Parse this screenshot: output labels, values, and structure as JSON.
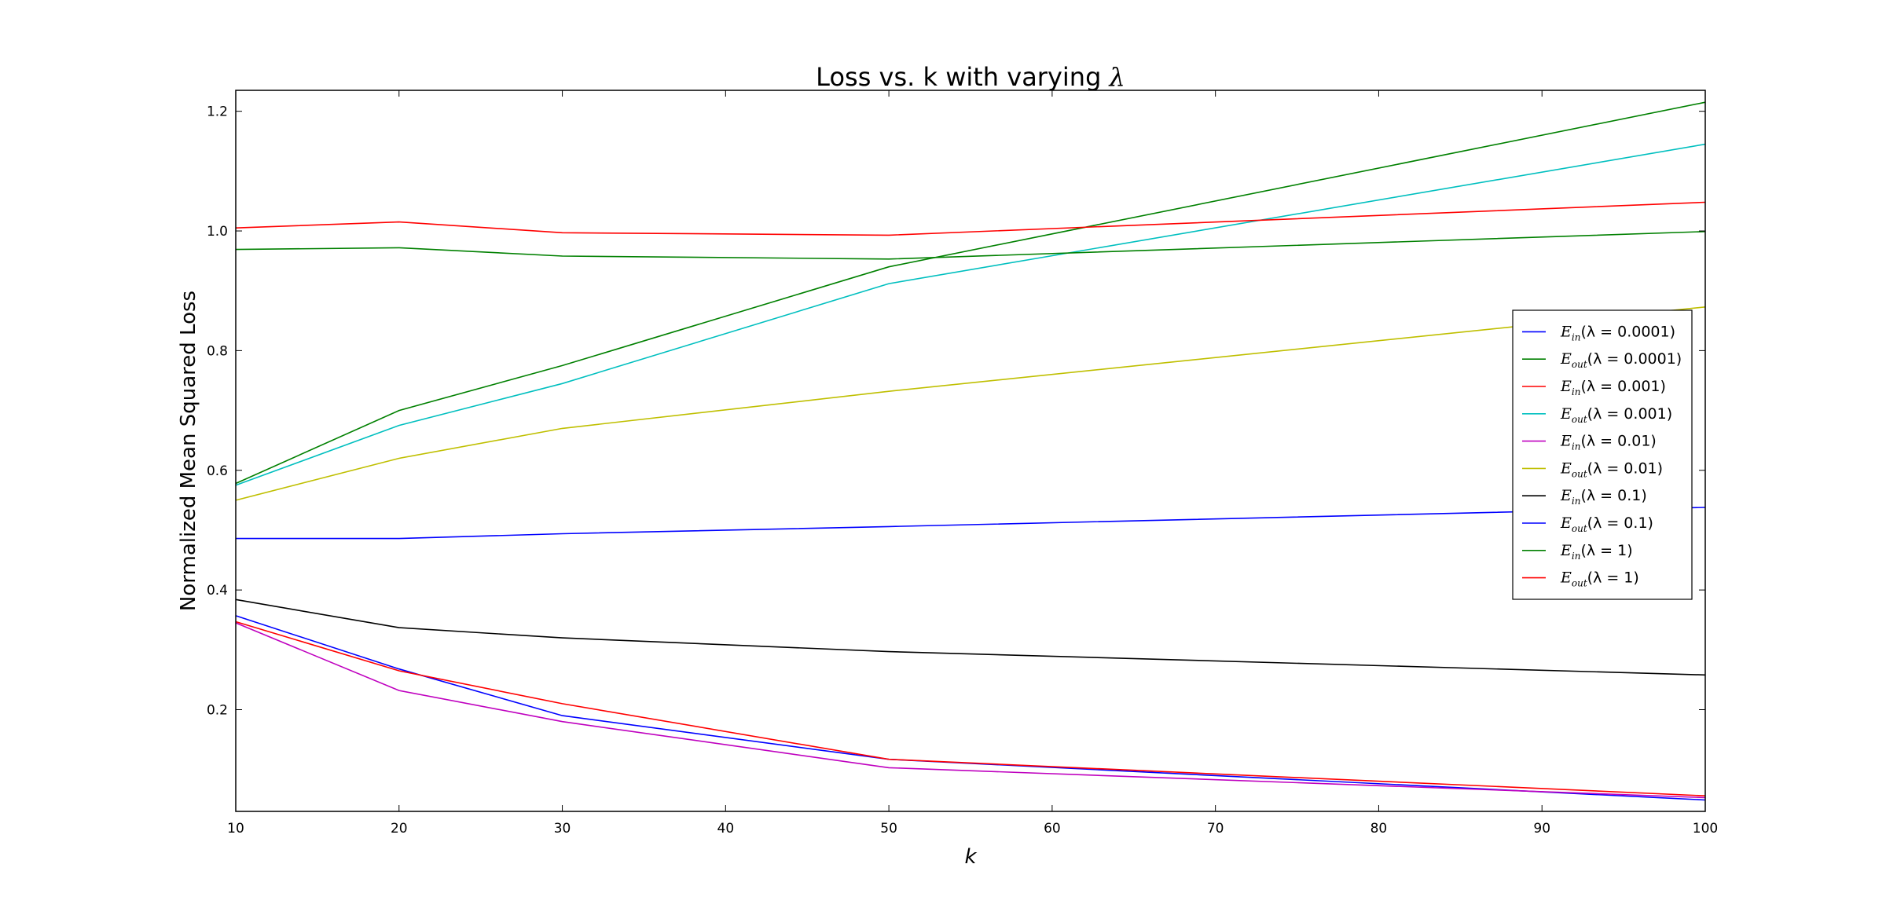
{
  "chart_data": {
    "type": "line",
    "title": "Loss vs. k with varying λ",
    "title_plain": "Loss vs. k with varying",
    "title_symbol": "λ",
    "xlabel": "k",
    "ylabel": "Normalized Mean Squared Loss",
    "xlim": [
      10,
      100
    ],
    "ylim": [
      0.03,
      1.235
    ],
    "xticks": [
      10,
      20,
      30,
      40,
      50,
      60,
      70,
      80,
      90,
      100
    ],
    "xtick_labels": [
      "10",
      "20",
      "30",
      "40",
      "50",
      "60",
      "70",
      "80",
      "90",
      "100"
    ],
    "yticks": [
      0.2,
      0.4,
      0.6,
      0.8,
      1.0,
      1.2
    ],
    "ytick_labels": [
      "0.2",
      "0.4",
      "0.6",
      "0.8",
      "1.0",
      "1.2"
    ],
    "grid": false,
    "legend_position": "center-right",
    "x": [
      10,
      20,
      30,
      50,
      100
    ],
    "series": [
      {
        "name": "E_in(λ = 0.0001)",
        "sym": "E",
        "sub": "in",
        "param": "(λ = 0.0001)",
        "color": "#0000ff",
        "values": [
          0.357,
          0.268,
          0.19,
          0.117,
          0.049
        ]
      },
      {
        "name": "E_out(λ = 0.0001)",
        "sym": "E",
        "sub": "out",
        "param": "(λ = 0.0001)",
        "color": "#008000",
        "values": [
          0.578,
          0.7,
          0.775,
          0.94,
          1.215
        ]
      },
      {
        "name": "E_in(λ = 0.001)",
        "sym": "E",
        "sub": "in",
        "param": "(λ = 0.001)",
        "color": "#ff0000",
        "values": [
          0.347,
          0.265,
          0.21,
          0.117,
          0.056
        ]
      },
      {
        "name": "E_out(λ = 0.001)",
        "sym": "E",
        "sub": "out",
        "param": "(λ = 0.001)",
        "color": "#00bfbf",
        "values": [
          0.575,
          0.675,
          0.745,
          0.912,
          1.145
        ]
      },
      {
        "name": "E_in(λ = 0.01)",
        "sym": "E",
        "sub": "in",
        "param": "(λ = 0.01)",
        "color": "#bf00bf",
        "values": [
          0.345,
          0.232,
          0.18,
          0.103,
          0.053
        ]
      },
      {
        "name": "E_out(λ = 0.01)",
        "sym": "E",
        "sub": "out",
        "param": "(λ = 0.01)",
        "color": "#bfbf00",
        "values": [
          0.55,
          0.62,
          0.67,
          0.732,
          0.873
        ]
      },
      {
        "name": "E_in(λ = 0.1)",
        "sym": "E",
        "sub": "in",
        "param": "(λ = 0.1)",
        "color": "#000000",
        "values": [
          0.384,
          0.337,
          0.32,
          0.297,
          0.258
        ]
      },
      {
        "name": "E_out(λ = 0.1)",
        "sym": "E",
        "sub": "out",
        "param": "(λ = 0.1)",
        "color": "#0000ff",
        "values": [
          0.486,
          0.486,
          0.494,
          0.506,
          0.538
        ]
      },
      {
        "name": "E_in(λ = 1)",
        "sym": "E",
        "sub": "in",
        "param": "(λ = 1)",
        "color": "#008000",
        "values": [
          0.969,
          0.972,
          0.958,
          0.953,
          0.999
        ]
      },
      {
        "name": "E_out(λ = 1)",
        "sym": "E",
        "sub": "out",
        "param": "(λ = 1)",
        "color": "#ff0000",
        "values": [
          1.005,
          1.015,
          0.997,
          0.993,
          1.048
        ]
      }
    ]
  }
}
